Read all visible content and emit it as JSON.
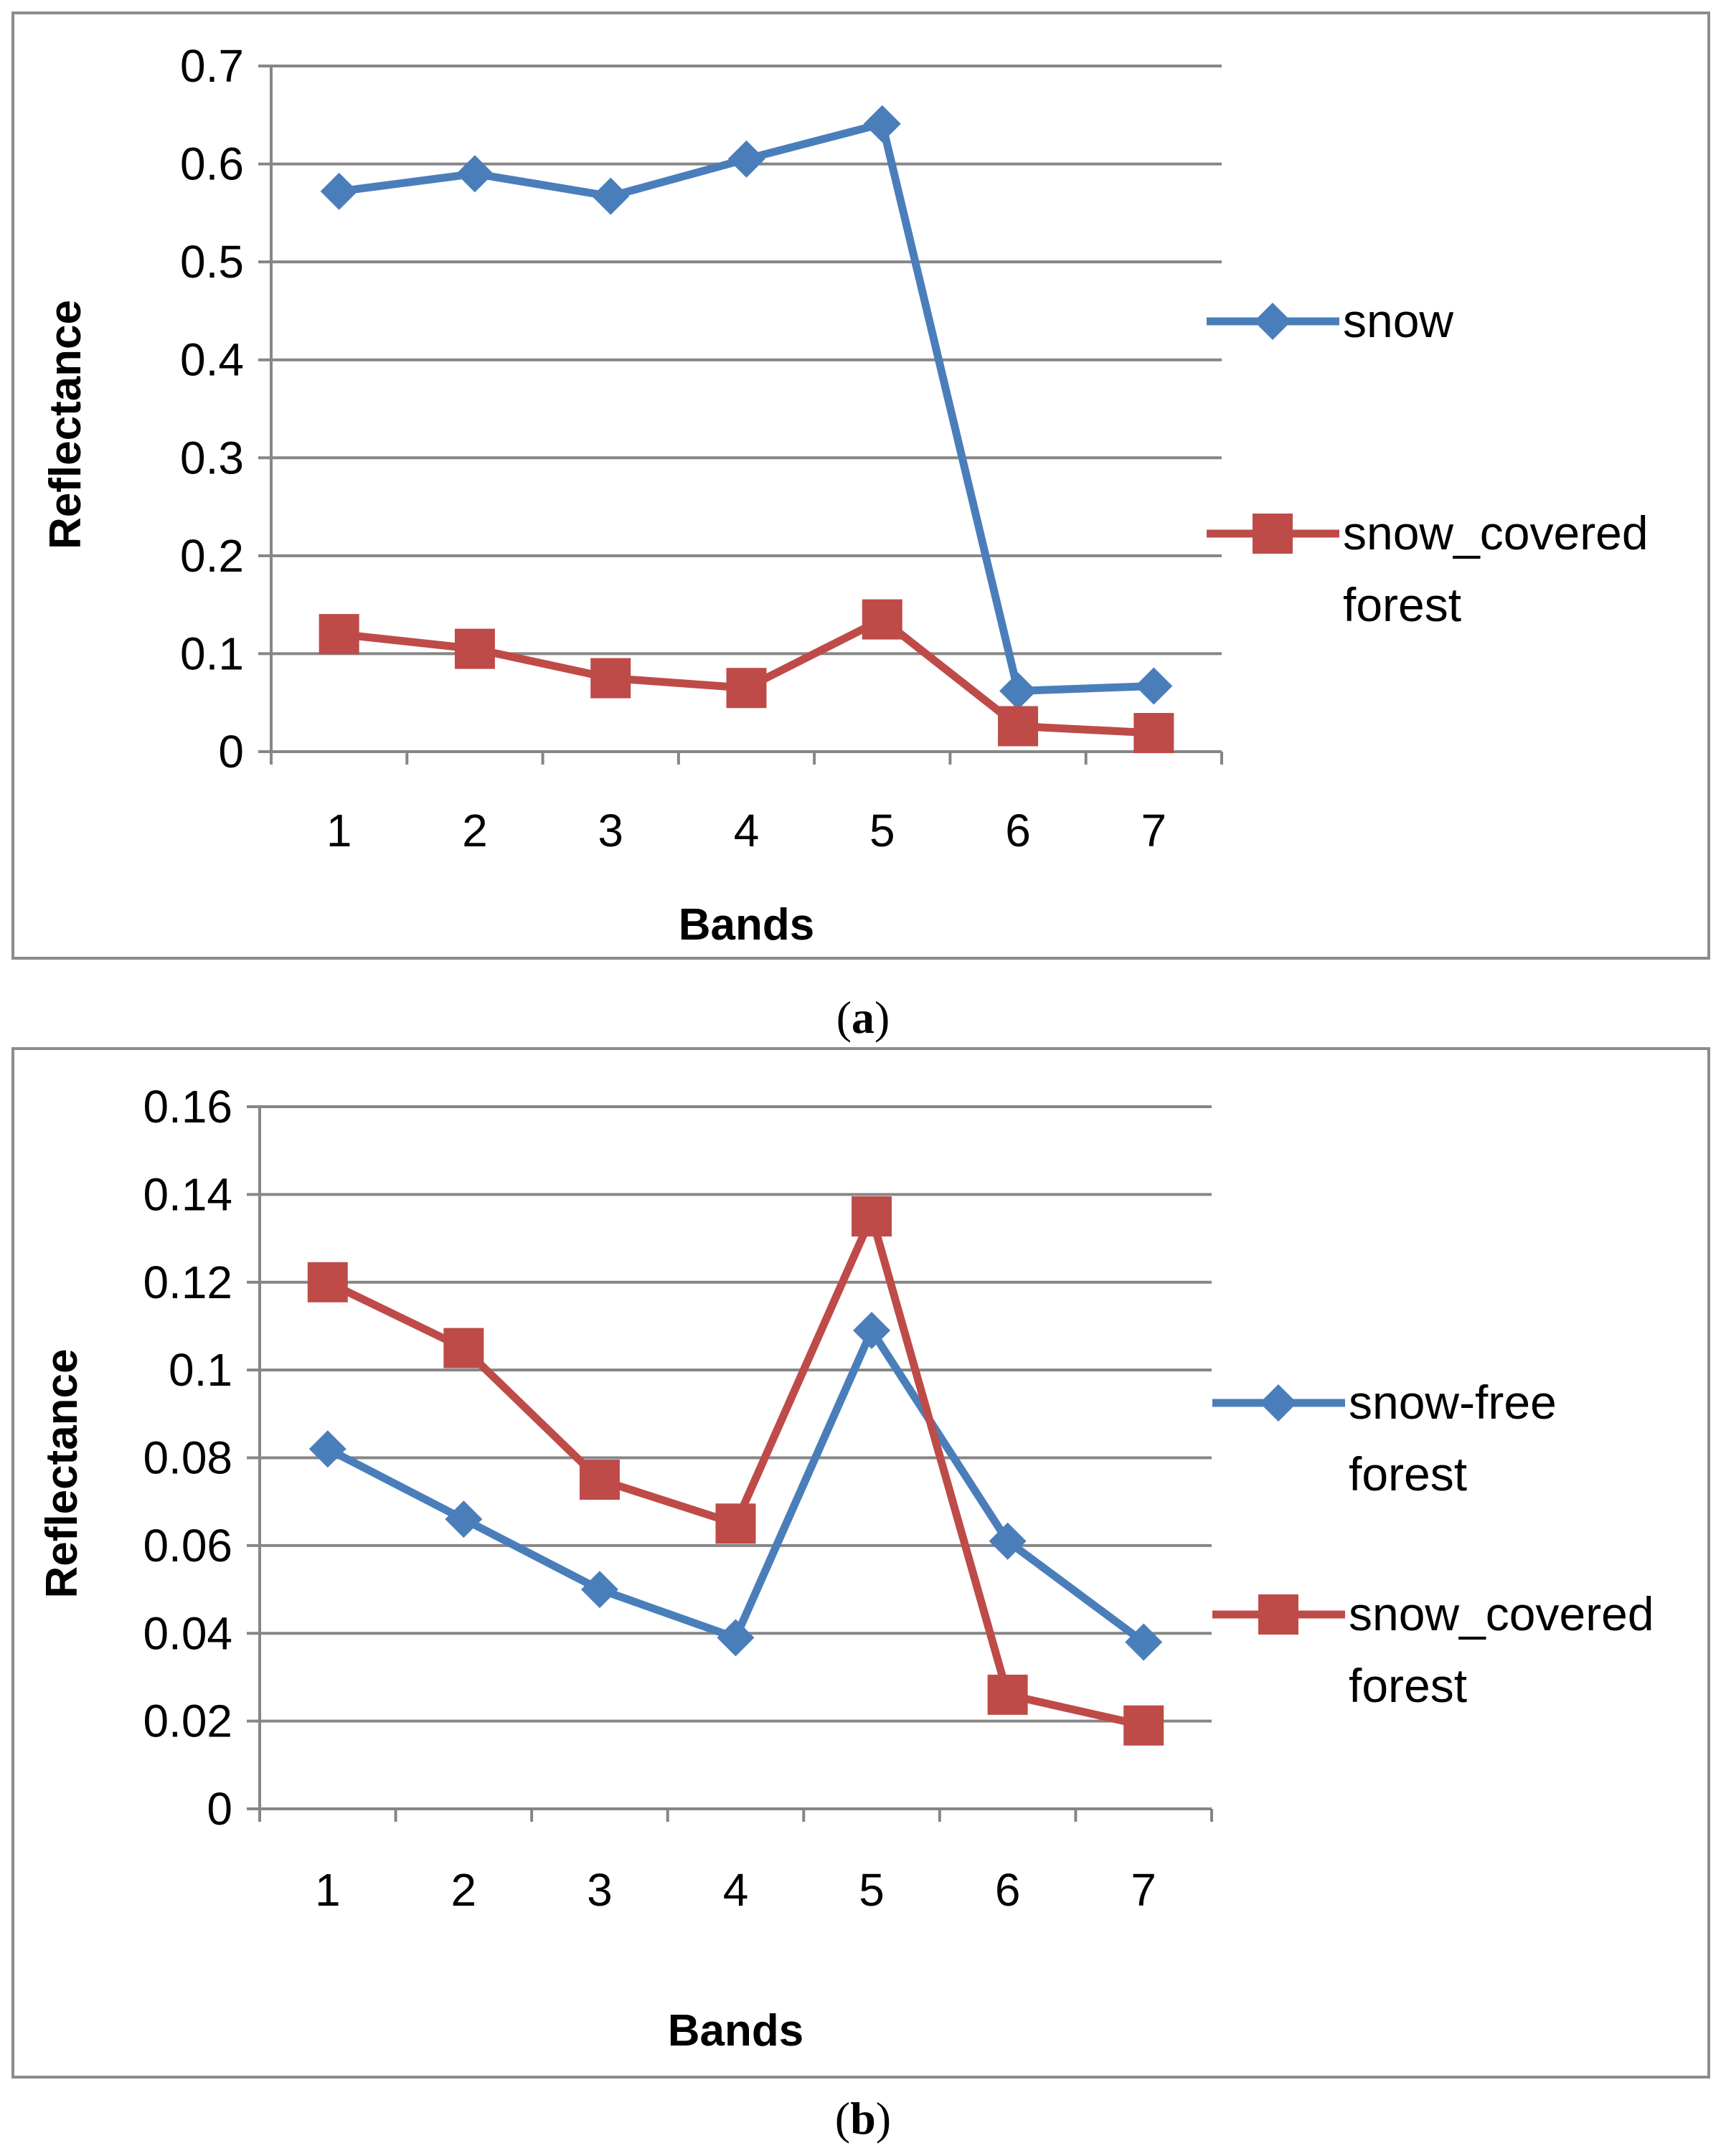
{
  "chart_data": [
    {
      "id": "a",
      "type": "line",
      "caption_letter": "a",
      "xlabel": "Bands",
      "ylabel": "Reflectance",
      "categories": [
        "1",
        "2",
        "3",
        "4",
        "5",
        "6",
        "7"
      ],
      "ylim": [
        0,
        0.7
      ],
      "yticks": [
        "0",
        "0.1",
        "0.2",
        "0.3",
        "0.4",
        "0.5",
        "0.6",
        "0.7"
      ],
      "grid": true,
      "legend_position": "right",
      "series": [
        {
          "name": "snow",
          "legend_lines": [
            "snow"
          ],
          "color": "#4a7ebb",
          "marker": "diamond",
          "values": [
            0.572,
            0.59,
            0.567,
            0.605,
            0.641,
            0.062,
            0.067
          ]
        },
        {
          "name": "snow_covered forest",
          "legend_lines": [
            "snow_covered",
            "forest"
          ],
          "color": "#be4b48",
          "marker": "square",
          "values": [
            0.12,
            0.105,
            0.075,
            0.065,
            0.135,
            0.026,
            0.019
          ]
        }
      ]
    },
    {
      "id": "b",
      "type": "line",
      "caption_letter": "b",
      "xlabel": "Bands",
      "ylabel": "Reflectance",
      "categories": [
        "1",
        "2",
        "3",
        "4",
        "5",
        "6",
        "7"
      ],
      "ylim": [
        0,
        0.16
      ],
      "yticks": [
        "0",
        "0.02",
        "0.04",
        "0.06",
        "0.08",
        "0.1",
        "0.12",
        "0.14",
        "0.16"
      ],
      "grid": true,
      "legend_position": "right",
      "series": [
        {
          "name": "snow-free forest",
          "legend_lines": [
            "snow-free",
            "forest"
          ],
          "color": "#4a7ebb",
          "marker": "diamond",
          "values": [
            0.082,
            0.066,
            0.05,
            0.039,
            0.109,
            0.061,
            0.038
          ]
        },
        {
          "name": "snow_covered forest",
          "legend_lines": [
            "snow_covered",
            "forest"
          ],
          "color": "#be4b48",
          "marker": "square",
          "values": [
            0.12,
            0.105,
            0.075,
            0.065,
            0.135,
            0.026,
            0.019
          ]
        }
      ]
    }
  ]
}
